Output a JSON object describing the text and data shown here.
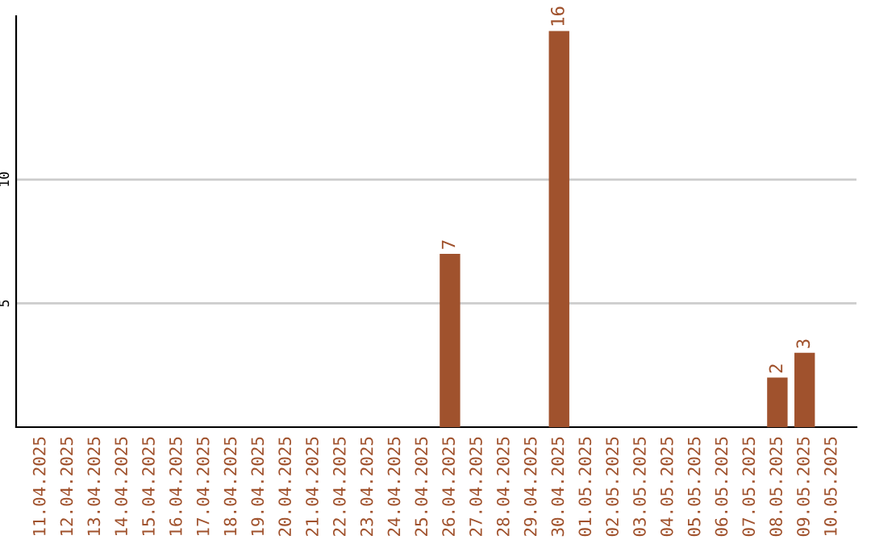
{
  "chart_data": {
    "type": "bar",
    "categories": [
      "11.04.2025",
      "12.04.2025",
      "13.04.2025",
      "14.04.2025",
      "15.04.2025",
      "16.04.2025",
      "17.04.2025",
      "18.04.2025",
      "19.04.2025",
      "20.04.2025",
      "21.04.2025",
      "22.04.2025",
      "23.04.2025",
      "24.04.2025",
      "25.04.2025",
      "26.04.2025",
      "27.04.2025",
      "28.04.2025",
      "29.04.2025",
      "30.04.2025",
      "01.05.2025",
      "02.05.2025",
      "03.05.2025",
      "04.05.2025",
      "05.05.2025",
      "06.05.2025",
      "07.05.2025",
      "08.05.2025",
      "09.05.2025",
      "10.05.2025"
    ],
    "values": [
      0,
      0,
      0,
      0,
      0,
      0,
      0,
      0,
      0,
      0,
      0,
      0,
      0,
      0,
      0,
      7,
      0,
      0,
      0,
      16,
      0,
      0,
      0,
      0,
      0,
      0,
      0,
      2,
      3,
      0
    ],
    "value_labels": [
      null,
      null,
      null,
      null,
      null,
      null,
      null,
      null,
      null,
      null,
      null,
      null,
      null,
      null,
      null,
      "7",
      null,
      null,
      null,
      "16",
      null,
      null,
      null,
      null,
      null,
      null,
      null,
      "2",
      "3",
      null
    ],
    "color": "#a0522d",
    "ylim": [
      0,
      16.6
    ],
    "yticks": [
      5,
      10
    ],
    "grid": "y",
    "legend": false
  }
}
